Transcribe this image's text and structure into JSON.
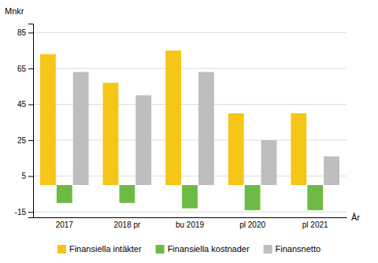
{
  "chart_data": {
    "type": "bar",
    "categories": [
      "2017",
      "2018 pr",
      "bu 2019",
      "pl 2020",
      "pl 2021"
    ],
    "series": [
      {
        "name": "Finansiella intäkter",
        "color": "#F5C518",
        "values": [
          73,
          57,
          75,
          40,
          40
        ]
      },
      {
        "name": "Finansiella kostnader",
        "color": "#6DBB45",
        "values": [
          -10,
          -10,
          -13,
          -14,
          -14
        ]
      },
      {
        "name": "Finansnetto",
        "color": "#BEBEBE",
        "values": [
          63,
          50,
          63,
          25,
          16
        ]
      }
    ],
    "ylabel": "Mnkr",
    "xlabel": "År",
    "ylim": [
      -18,
      90
    ],
    "yticks": [
      -15,
      5,
      25,
      45,
      65,
      85
    ],
    "grid": true,
    "legend": "bottom"
  }
}
